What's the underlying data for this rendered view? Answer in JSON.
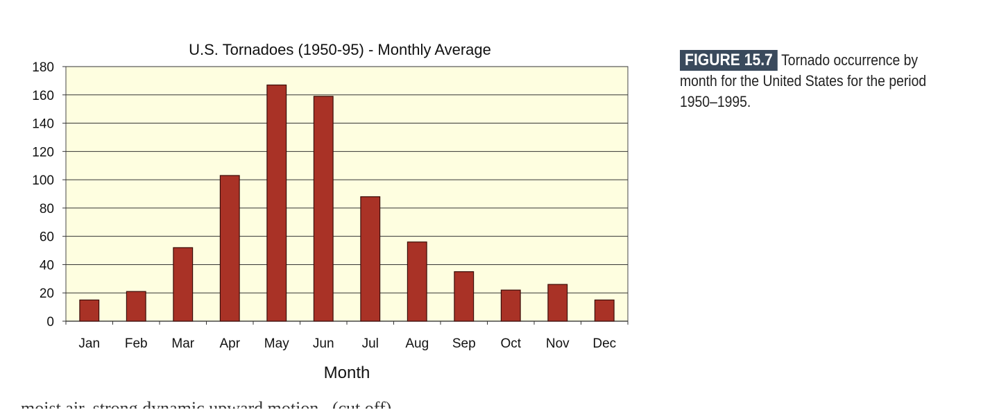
{
  "chart_data": {
    "type": "bar",
    "title": "U.S. Tornadoes (1950-95) - Monthly Average",
    "xlabel": "Month",
    "ylabel": "",
    "categories": [
      "Jan",
      "Feb",
      "Mar",
      "Apr",
      "May",
      "Jun",
      "Jul",
      "Aug",
      "Sep",
      "Oct",
      "Nov",
      "Dec"
    ],
    "values": [
      15,
      21,
      52,
      103,
      167,
      159,
      88,
      56,
      35,
      22,
      26,
      15
    ],
    "ylim": [
      0,
      180
    ],
    "yticks": [
      0,
      20,
      40,
      60,
      80,
      100,
      120,
      140,
      160,
      180
    ],
    "grid": true,
    "legend": "none",
    "colors": {
      "bar": "#a93226",
      "plot_bg": "#fefee0",
      "grid": "#333333"
    }
  },
  "caption": {
    "label": "FIGURE 15.7",
    "text": "Tornado occurrence by month for the United States for the period 1950–1995."
  },
  "bottom_text": "moist air, strong dynamic upward motion...(cut off)"
}
